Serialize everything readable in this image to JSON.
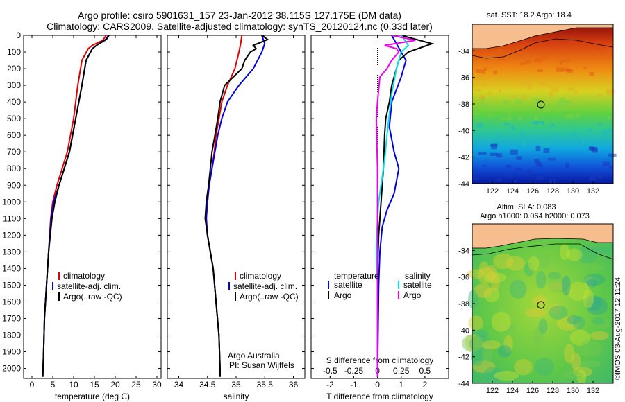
{
  "header": {
    "line1": "Argo profile: csiro 5901631_157 23-Jan-2012 38.115S 127.175E (DM data)",
    "line2": "Climatology: CARS2009. Satellite-adjusted climatology: synTS_20120124.nc (0.33d later)"
  },
  "colors": {
    "climatology": "#dd0000",
    "satellite": "#0000dd",
    "argo": "#000000",
    "sat_salinity": "#00e0e8",
    "argo_salinity": "#ee00ee",
    "land": "#f6bd8f"
  },
  "chart_data": [
    {
      "type": "line",
      "name": "temperature-profile",
      "xlabel": "temperature (deg C)",
      "ylabel": "",
      "xlim": [
        -2,
        31
      ],
      "ylim": [
        2060,
        0
      ],
      "xticks": [
        0,
        5,
        10,
        15,
        20,
        25,
        30
      ],
      "yticks": [
        0,
        100,
        200,
        300,
        400,
        500,
        600,
        700,
        800,
        900,
        1000,
        1100,
        1200,
        1300,
        1400,
        1500,
        1600,
        1700,
        1800,
        1900,
        2000
      ],
      "legend": [
        "climatology",
        "satellite-adj. clim.",
        "Argo(..raw -QC)"
      ],
      "legend_placement": "center-right",
      "series": [
        {
          "name": "climatology",
          "color": "#dd0000",
          "points": [
            [
              17.8,
              0
            ],
            [
              17,
              30
            ],
            [
              14.5,
              60
            ],
            [
              13.5,
              80
            ],
            [
              12,
              150
            ],
            [
              11,
              300
            ],
            [
              10,
              500
            ],
            [
              8.5,
              700
            ],
            [
              6,
              900
            ],
            [
              5,
              1000
            ],
            [
              4.5,
              1100
            ],
            [
              4,
              1300
            ],
            [
              3.5,
              1500
            ],
            [
              3,
              1700
            ],
            [
              2.8,
              1900
            ],
            [
              2.6,
              2050
            ]
          ]
        },
        {
          "name": "satellite-adj. clim.",
          "color": "#0000dd",
          "points": [
            [
              18.4,
              0
            ],
            [
              17.5,
              30
            ],
            [
              15.5,
              60
            ],
            [
              14.5,
              80
            ],
            [
              13,
              150
            ],
            [
              12,
              300
            ],
            [
              10.5,
              500
            ],
            [
              9,
              700
            ],
            [
              6.5,
              900
            ],
            [
              5.2,
              1000
            ],
            [
              4.6,
              1100
            ],
            [
              4,
              1300
            ],
            [
              3.5,
              1500
            ],
            [
              3,
              1700
            ],
            [
              2.8,
              1900
            ],
            [
              2.6,
              2050
            ]
          ]
        },
        {
          "name": "Argo(..raw -QC)",
          "color": "#000000",
          "points": [
            [
              18.5,
              0
            ],
            [
              18,
              20
            ],
            [
              15.5,
              60
            ],
            [
              14.5,
              80
            ],
            [
              13,
              150
            ],
            [
              12,
              300
            ],
            [
              10.5,
              500
            ],
            [
              9,
              700
            ],
            [
              6.5,
              900
            ],
            [
              5.5,
              1000
            ],
            [
              4.8,
              1100
            ],
            [
              4,
              1300
            ],
            [
              3.5,
              1500
            ],
            [
              3,
              1700
            ],
            [
              2.8,
              1900
            ],
            [
              2.6,
              2050
            ]
          ]
        }
      ]
    },
    {
      "type": "line",
      "name": "salinity-profile",
      "xlabel": "salinity",
      "xlim": [
        33.8,
        36.2
      ],
      "ylim": [
        2060,
        0
      ],
      "xticks": [
        34,
        34.5,
        35,
        35.5,
        36
      ],
      "legend": [
        "climatology",
        "satellite-adj. clim.",
        "Argo(..raw -QC)"
      ],
      "legend_placement": "center-right",
      "annotation": [
        "Argo Australia",
        "PI: Susan Wijffels"
      ],
      "series": [
        {
          "name": "climatology",
          "color": "#dd0000",
          "points": [
            [
              35.1,
              0
            ],
            [
              35.08,
              50
            ],
            [
              35.05,
              100
            ],
            [
              34.98,
              200
            ],
            [
              34.85,
              300
            ],
            [
              34.75,
              400
            ],
            [
              34.7,
              500
            ],
            [
              34.65,
              600
            ],
            [
              34.62,
              700
            ],
            [
              34.58,
              800
            ],
            [
              34.53,
              900
            ],
            [
              34.5,
              1000
            ],
            [
              34.48,
              1100
            ],
            [
              34.5,
              1200
            ],
            [
              34.55,
              1300
            ],
            [
              34.6,
              1400
            ],
            [
              34.65,
              1600
            ],
            [
              34.7,
              1800
            ],
            [
              34.72,
              2000
            ],
            [
              34.72,
              2050
            ]
          ]
        },
        {
          "name": "satellite-adj. clim.",
          "color": "#0000dd",
          "points": [
            [
              35.45,
              0
            ],
            [
              35.5,
              50
            ],
            [
              35.45,
              100
            ],
            [
              35.3,
              200
            ],
            [
              35.05,
              300
            ],
            [
              34.85,
              400
            ],
            [
              34.75,
              500
            ],
            [
              34.68,
              600
            ],
            [
              34.63,
              700
            ],
            [
              34.58,
              800
            ],
            [
              34.53,
              900
            ],
            [
              34.5,
              1000
            ],
            [
              34.48,
              1100
            ],
            [
              34.5,
              1200
            ],
            [
              34.55,
              1300
            ],
            [
              34.6,
              1400
            ],
            [
              34.65,
              1600
            ],
            [
              34.7,
              1800
            ],
            [
              34.72,
              2000
            ],
            [
              34.72,
              2050
            ]
          ]
        },
        {
          "name": "Argo(..raw -QC)",
          "color": "#000000",
          "points": [
            [
              35.45,
              0
            ],
            [
              35.55,
              25
            ],
            [
              35.3,
              60
            ],
            [
              35.35,
              80
            ],
            [
              35.25,
              100
            ],
            [
              35.15,
              150
            ],
            [
              35.1,
              200
            ],
            [
              34.95,
              250
            ],
            [
              34.8,
              300
            ],
            [
              34.72,
              400
            ],
            [
              34.68,
              500
            ],
            [
              34.63,
              600
            ],
            [
              34.58,
              700
            ],
            [
              34.55,
              800
            ],
            [
              34.52,
              900
            ],
            [
              34.48,
              1000
            ],
            [
              34.46,
              1100
            ],
            [
              34.5,
              1200
            ],
            [
              34.55,
              1300
            ],
            [
              34.6,
              1400
            ],
            [
              34.65,
              1600
            ],
            [
              34.7,
              1800
            ],
            [
              34.72,
              2000
            ],
            [
              34.72,
              2050
            ]
          ]
        }
      ]
    },
    {
      "type": "line",
      "name": "difference-profile",
      "xlabel": "T difference from climatology",
      "xlabel_top": "S difference from climatology",
      "xlim": [
        -2.8,
        3
      ],
      "ylim": [
        2060,
        0
      ],
      "xticks": [
        -2,
        -1,
        0,
        1,
        2
      ],
      "xticks_top": [
        "-0.5",
        "-0.25",
        "0",
        "0.25",
        "0.5"
      ],
      "legend_headers": [
        "temperature",
        "salinity"
      ],
      "legend": [
        "satellite",
        "Argo",
        "satellite",
        "Argo"
      ],
      "series": [
        {
          "name": "temperature satellite",
          "color": "#0000dd",
          "points": [
            [
              0.6,
              0
            ],
            [
              0.8,
              50
            ],
            [
              1.0,
              100
            ],
            [
              1.2,
              150
            ],
            [
              1.0,
              250
            ],
            [
              0.6,
              400
            ],
            [
              0.5,
              550
            ],
            [
              0.7,
              700
            ],
            [
              0.9,
              800
            ],
            [
              0.7,
              950
            ],
            [
              0.4,
              1050
            ],
            [
              0.2,
              1150
            ],
            [
              0.1,
              1300
            ],
            [
              0.05,
              1500
            ],
            [
              0,
              2050
            ]
          ]
        },
        {
          "name": "temperature Argo",
          "color": "#000000",
          "points": [
            [
              1.0,
              0
            ],
            [
              2.3,
              50
            ],
            [
              1.3,
              100
            ],
            [
              0.9,
              150
            ],
            [
              0.8,
              200
            ],
            [
              0.6,
              300
            ],
            [
              0.5,
              400
            ],
            [
              0.35,
              500
            ],
            [
              0.3,
              600
            ],
            [
              0.25,
              800
            ],
            [
              0.2,
              900
            ],
            [
              0.15,
              1000
            ],
            [
              0.1,
              1100
            ],
            [
              0.05,
              1200
            ],
            [
              0,
              1400
            ],
            [
              0,
              2050
            ]
          ]
        },
        {
          "name": "salinity satellite",
          "color": "#00e0e8",
          "points": [
            [
              1.0,
              0
            ],
            [
              1.3,
              60
            ],
            [
              1.0,
              100
            ],
            [
              0.8,
              200
            ],
            [
              0.6,
              350
            ],
            [
              0.4,
              600
            ],
            [
              0.3,
              750
            ],
            [
              0.15,
              900
            ],
            [
              0.05,
              1000
            ],
            [
              0,
              1100
            ],
            [
              -0.05,
              1300
            ],
            [
              0,
              1500
            ],
            [
              0,
              2050
            ]
          ]
        },
        {
          "name": "salinity Argo",
          "color": "#ee00ee",
          "points": [
            [
              0.6,
              0
            ],
            [
              1.6,
              30
            ],
            [
              0.3,
              60
            ],
            [
              0.8,
              80
            ],
            [
              0.9,
              100
            ],
            [
              0.6,
              150
            ],
            [
              0.4,
              200
            ],
            [
              0.1,
              250
            ],
            [
              0,
              400
            ],
            [
              -0.05,
              500
            ],
            [
              0,
              800
            ],
            [
              0,
              1000
            ],
            [
              0,
              1100
            ],
            [
              0,
              2050
            ]
          ]
        }
      ]
    },
    {
      "type": "heatmap",
      "name": "sst-map",
      "title": "sat. SST: 18.2  Argo: 18.4",
      "xlim": [
        120,
        134
      ],
      "ylim": [
        -44,
        -32
      ],
      "xticks": [
        "122",
        "124",
        "126",
        "128",
        "130",
        "132"
      ],
      "yticks": [
        "-34",
        "-36",
        "-38",
        "-40",
        "-42",
        "-44"
      ],
      "marker": [
        127.175,
        -38.115
      ]
    },
    {
      "type": "heatmap",
      "name": "sla-map",
      "title": "Altim. SLA: 0.083",
      "subtitle": "Argo h1000: 0.064 h2000: 0.073",
      "xlim": [
        120,
        134
      ],
      "ylim": [
        -44,
        -32
      ],
      "xticks": [
        "122",
        "124",
        "126",
        "128",
        "130",
        "132"
      ],
      "yticks": [
        "-34",
        "-36",
        "-38",
        "-40",
        "-42",
        "-44"
      ],
      "marker": [
        127.175,
        -38.115
      ]
    }
  ],
  "watermark": "©IMOS 03-Aug-2017 12:11:24"
}
